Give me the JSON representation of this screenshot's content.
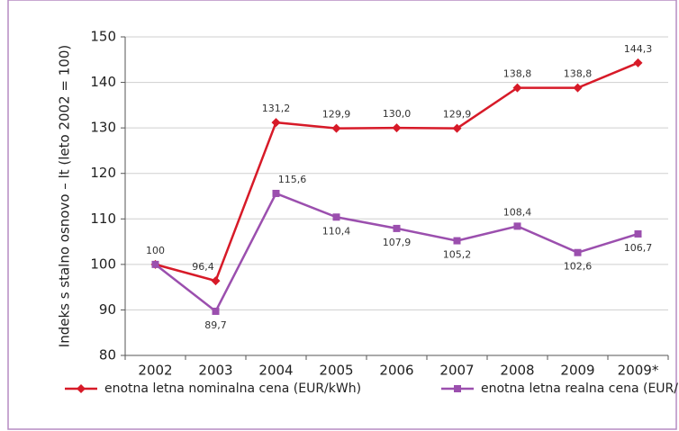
{
  "chart_data": {
    "type": "line",
    "ylabel": "Indeks s stalno osnovo – lt (leto 2002 = 100)",
    "categories": [
      "2002",
      "2003",
      "2004",
      "2005",
      "2006",
      "2007",
      "2008",
      "2009",
      "2009*"
    ],
    "series": [
      {
        "name": "enotna letna nominalna cena (EUR/kWh)",
        "color": "#d71a28",
        "values": [
          100,
          96.4,
          131.2,
          129.9,
          130.0,
          129.9,
          138.8,
          138.8,
          144.3
        ],
        "value_labels": [
          "100",
          "96,4",
          "131,2",
          "129,9",
          "130,0",
          "129,9",
          "138,8",
          "138,8",
          "144,3"
        ]
      },
      {
        "name": "enotna letna realna cena (EUR/kWh)",
        "color": "#9b4fae",
        "values": [
          100,
          89.7,
          115.6,
          110.4,
          107.9,
          105.2,
          108.4,
          102.6,
          106.7
        ],
        "value_labels": [
          null,
          "89,7",
          "115,6",
          "110,4",
          "107,9",
          "105,2",
          "108,4",
          "102,6",
          "106,7"
        ]
      }
    ],
    "ylim": [
      80,
      150
    ],
    "yticks": [
      80,
      90,
      100,
      110,
      120,
      130,
      140,
      150
    ],
    "grid": true,
    "legend": "bottom"
  }
}
